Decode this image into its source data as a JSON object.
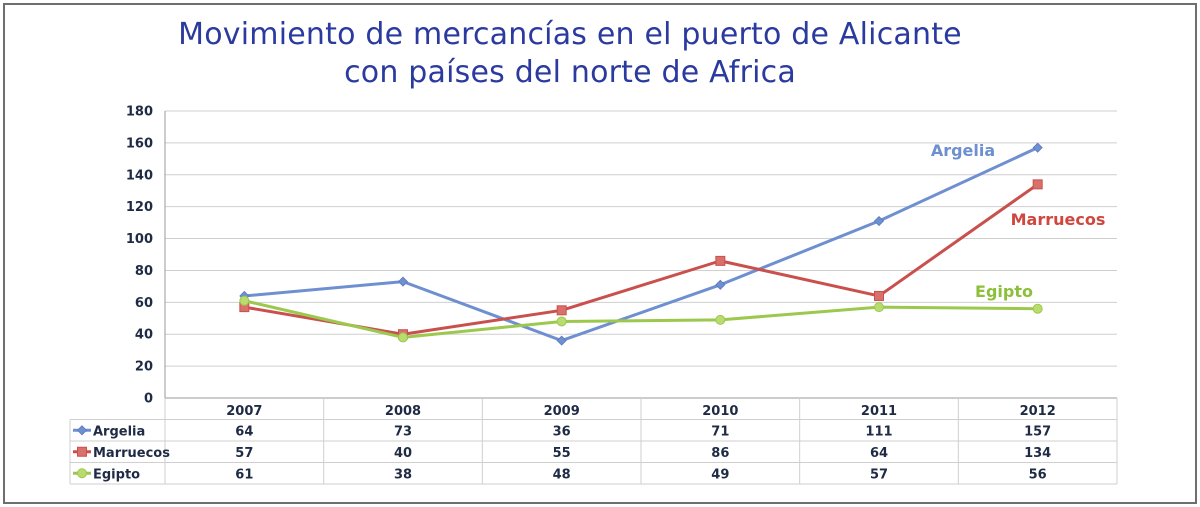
{
  "chart_data": {
    "type": "line",
    "title_line1": "Movimiento de mercancías en el puerto de Alicante",
    "title_line2": "con países del norte de Africa",
    "categories": [
      "2007",
      "2008",
      "2009",
      "2010",
      "2011",
      "2012"
    ],
    "ylim": [
      0,
      180
    ],
    "yticks": [
      "0",
      "20",
      "40",
      "60",
      "80",
      "100",
      "120",
      "140",
      "160",
      "180"
    ],
    "grid": true,
    "series": [
      {
        "name": "Argelia",
        "values": [
          64,
          73,
          36,
          71,
          111,
          157
        ],
        "color": "#6e8fd0",
        "marker": "diamond"
      },
      {
        "name": "Marruecos",
        "values": [
          57,
          40,
          55,
          86,
          64,
          134
        ],
        "color": "#c9504c",
        "marker": "square"
      },
      {
        "name": "Egipto",
        "values": [
          61,
          38,
          48,
          49,
          57,
          56
        ],
        "color": "#9cc84e",
        "marker": "circle"
      }
    ],
    "table_values": [
      [
        "64",
        "73",
        "36",
        "71",
        "111",
        "157"
      ],
      [
        "57",
        "40",
        "55",
        "86",
        "64",
        "134"
      ],
      [
        "61",
        "38",
        "48",
        "49",
        "57",
        "56"
      ]
    ]
  }
}
